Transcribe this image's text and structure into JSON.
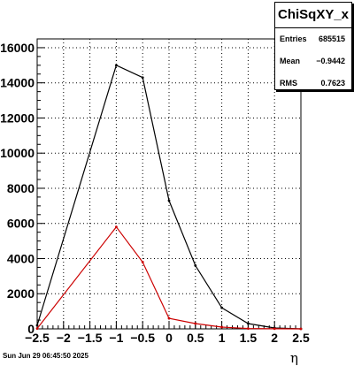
{
  "chart_data": {
    "type": "line",
    "title": "",
    "xlabel": "η",
    "ylabel": "",
    "xlim": [
      -2.5,
      2.5
    ],
    "ylim": [
      0,
      16500
    ],
    "grid": true,
    "x_ticks": [
      "−2.5",
      "−2",
      "−1.5",
      "−1",
      "−0.5",
      "0",
      "0.5",
      "1",
      "1.5",
      "2",
      "2.5"
    ],
    "x_tick_values": [
      -2.5,
      -2,
      -1.5,
      -1,
      -0.5,
      0,
      0.5,
      1,
      1.5,
      2,
      2.5
    ],
    "y_ticks": [
      "0",
      "2000",
      "4000",
      "6000",
      "8000",
      "10000",
      "12000",
      "14000",
      "16000"
    ],
    "y_tick_values": [
      0,
      2000,
      4000,
      6000,
      8000,
      10000,
      12000,
      14000,
      16000
    ],
    "x": [
      -2.5,
      -1.0,
      -0.5,
      0.0,
      0.5,
      1.0,
      1.5,
      2.0,
      2.5
    ],
    "series": [
      {
        "color": "#000000",
        "values": [
          200,
          15000,
          14300,
          7300,
          3600,
          1200,
          300,
          50,
          0
        ]
      },
      {
        "color": "#cc0000",
        "values": [
          20,
          5800,
          3800,
          600,
          300,
          100,
          20,
          5,
          0
        ]
      }
    ]
  },
  "stats": {
    "title": "ChiSqXY_x",
    "rows": [
      {
        "key": "Entries",
        "value": "685515"
      },
      {
        "key": "Mean",
        "value": "−0.9442"
      },
      {
        "key": "RMS",
        "value": "0.7623"
      }
    ]
  },
  "footer": {
    "timestamp": "Sun Jun 29 06:45:50 2025"
  }
}
